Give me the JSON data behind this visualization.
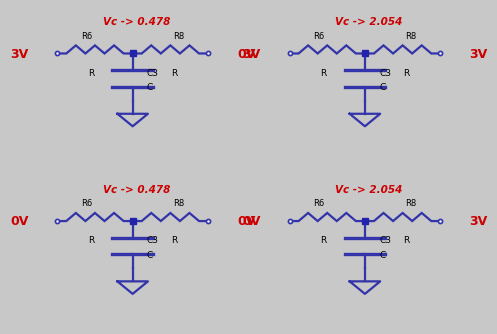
{
  "bg_color": "#b8b8b8",
  "outer_bg": "#c8c8c8",
  "circuit_color": "#3333aa",
  "label_color": "#cc0000",
  "node_color": "#2222aa",
  "panels": [
    {
      "left_label": "3V",
      "right_label": "0V",
      "vc_text": "Vc -> 0.478",
      "row": 0,
      "col": 0
    },
    {
      "left_label": "3V",
      "right_label": "3V",
      "vc_text": "Vc -> 2.054",
      "row": 0,
      "col": 1
    },
    {
      "left_label": "0V",
      "right_label": "0V",
      "vc_text": "Vc -> 0.478",
      "row": 1,
      "col": 0
    },
    {
      "left_label": "0V",
      "right_label": "3V",
      "vc_text": "Vc -> 2.054",
      "row": 1,
      "col": 1
    }
  ]
}
